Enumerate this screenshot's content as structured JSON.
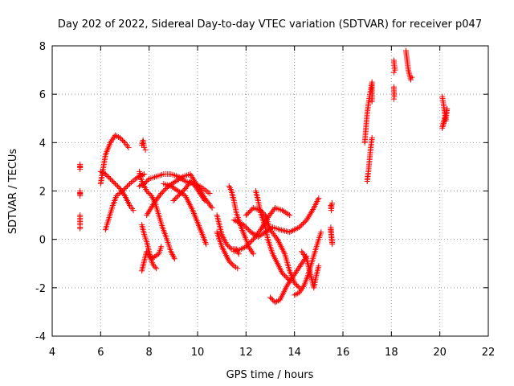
{
  "chart_data": {
    "type": "scatter",
    "title": "Day 202 of 2022, Sidereal Day-to-day VTEC variation (SDTVAR) for receiver p047",
    "xlabel": "GPS time / hours",
    "ylabel": "SDTVAR / TECUs",
    "xlim": [
      4,
      22
    ],
    "ylim": [
      -4,
      8
    ],
    "xticks": [
      "4",
      "6",
      "8",
      "10",
      "12",
      "14",
      "16",
      "18",
      "20",
      "22"
    ],
    "yticks": [
      "-4",
      "-2",
      "0",
      "2",
      "4",
      "6",
      "8"
    ],
    "grid": true,
    "marker": "+",
    "color": "#ff0000",
    "tracks": [
      [
        [
          5.15,
          3.0
        ],
        [
          5.15,
          3.1
        ],
        [
          5.15,
          2.9
        ]
      ],
      [
        [
          5.15,
          2.0
        ],
        [
          5.15,
          1.8
        ],
        [
          5.15,
          1.9
        ]
      ],
      [
        [
          5.15,
          1.0
        ],
        [
          5.15,
          0.8
        ],
        [
          5.15,
          0.6
        ],
        [
          5.15,
          0.5
        ],
        [
          5.15,
          0.45
        ]
      ],
      [
        [
          6.0,
          2.3
        ],
        [
          6.1,
          2.9
        ],
        [
          6.2,
          3.5
        ],
        [
          6.4,
          4.0
        ],
        [
          6.6,
          4.3
        ],
        [
          6.8,
          4.2
        ],
        [
          7.0,
          4.0
        ],
        [
          7.15,
          3.8
        ]
      ],
      [
        [
          6.0,
          2.8
        ],
        [
          6.2,
          2.7
        ],
        [
          6.5,
          2.4
        ],
        [
          6.8,
          2.1
        ],
        [
          7.0,
          1.8
        ],
        [
          7.2,
          1.4
        ],
        [
          7.35,
          1.2
        ]
      ],
      [
        [
          6.2,
          0.4
        ],
        [
          6.35,
          0.9
        ],
        [
          6.5,
          1.4
        ],
        [
          6.65,
          1.8
        ],
        [
          6.9,
          2.0
        ],
        [
          7.2,
          2.3
        ],
        [
          7.5,
          2.55
        ],
        [
          7.8,
          2.7
        ]
      ],
      [
        [
          7.7,
          3.9
        ],
        [
          7.75,
          4.1
        ],
        [
          7.8,
          3.8
        ],
        [
          7.85,
          3.7
        ]
      ],
      [
        [
          7.7,
          0.6
        ],
        [
          7.8,
          0.2
        ],
        [
          7.9,
          -0.1
        ],
        [
          8.0,
          -0.5
        ],
        [
          8.1,
          -0.9
        ],
        [
          8.2,
          -1.1
        ],
        [
          8.3,
          -1.2
        ]
      ],
      [
        [
          7.7,
          -1.3
        ],
        [
          7.8,
          -0.9
        ],
        [
          7.9,
          -0.5
        ],
        [
          8.1,
          -0.8
        ],
        [
          8.4,
          -0.6
        ],
        [
          8.5,
          -0.3
        ]
      ],
      [
        [
          7.6,
          2.8
        ],
        [
          7.7,
          2.4
        ],
        [
          7.9,
          2.0
        ],
        [
          8.1,
          1.8
        ],
        [
          8.25,
          1.5
        ],
        [
          8.4,
          1.0
        ],
        [
          8.55,
          0.5
        ],
        [
          8.7,
          0.1
        ],
        [
          8.8,
          -0.2
        ],
        [
          8.9,
          -0.5
        ],
        [
          9.05,
          -0.8
        ]
      ],
      [
        [
          7.6,
          2.2
        ],
        [
          7.8,
          2.3
        ],
        [
          8.0,
          2.5
        ],
        [
          8.3,
          2.6
        ],
        [
          8.6,
          2.7
        ],
        [
          8.9,
          2.7
        ],
        [
          9.2,
          2.6
        ],
        [
          9.5,
          2.4
        ],
        [
          9.8,
          2.3
        ],
        [
          10.1,
          2.2
        ],
        [
          10.3,
          2.05
        ],
        [
          10.5,
          1.9
        ]
      ],
      [
        [
          7.9,
          1.0
        ],
        [
          8.2,
          1.5
        ],
        [
          8.5,
          1.9
        ],
        [
          8.8,
          2.2
        ],
        [
          9.1,
          2.4
        ],
        [
          9.4,
          2.6
        ],
        [
          9.7,
          2.7
        ],
        [
          10.0,
          2.2
        ],
        [
          10.3,
          1.7
        ],
        [
          10.6,
          1.3
        ]
      ],
      [
        [
          8.6,
          2.3
        ],
        [
          8.9,
          2.2
        ],
        [
          9.2,
          2.0
        ],
        [
          9.5,
          1.8
        ],
        [
          9.8,
          1.2
        ],
        [
          10.0,
          0.7
        ],
        [
          10.2,
          0.2
        ],
        [
          10.35,
          -0.2
        ]
      ],
      [
        [
          9.0,
          1.6
        ],
        [
          9.3,
          1.9
        ],
        [
          9.5,
          2.1
        ],
        [
          9.7,
          2.4
        ],
        [
          9.9,
          2.2
        ],
        [
          10.1,
          1.9
        ],
        [
          10.3,
          1.6
        ]
      ],
      [
        [
          10.8,
          1.0
        ],
        [
          10.9,
          0.6
        ],
        [
          11.0,
          0.2
        ],
        [
          11.2,
          -0.2
        ],
        [
          11.4,
          -0.4
        ],
        [
          11.6,
          -0.4
        ],
        [
          11.7,
          -0.6
        ]
      ],
      [
        [
          10.8,
          0.3
        ],
        [
          11.0,
          -0.3
        ],
        [
          11.15,
          -0.6
        ],
        [
          11.3,
          -0.9
        ],
        [
          11.5,
          -1.1
        ],
        [
          11.65,
          -1.2
        ]
      ],
      [
        [
          11.3,
          2.2
        ],
        [
          11.4,
          2.0
        ],
        [
          11.5,
          1.6
        ],
        [
          11.6,
          1.1
        ],
        [
          11.8,
          0.5
        ],
        [
          12.0,
          0.0
        ],
        [
          12.1,
          -0.3
        ],
        [
          12.3,
          -0.6
        ]
      ],
      [
        [
          11.5,
          -0.5
        ],
        [
          11.8,
          -0.4
        ],
        [
          12.0,
          -0.3
        ],
        [
          12.3,
          0.0
        ],
        [
          12.6,
          0.4
        ],
        [
          12.9,
          0.9
        ],
        [
          13.2,
          1.3
        ],
        [
          13.5,
          1.2
        ],
        [
          13.8,
          1.0
        ]
      ],
      [
        [
          11.5,
          0.8
        ],
        [
          11.9,
          0.6
        ],
        [
          12.2,
          0.3
        ],
        [
          12.5,
          0.1
        ],
        [
          12.8,
          0.3
        ],
        [
          13.1,
          0.5
        ],
        [
          13.4,
          0.4
        ],
        [
          13.8,
          0.3
        ],
        [
          14.2,
          0.5
        ],
        [
          14.5,
          0.8
        ],
        [
          14.8,
          1.3
        ],
        [
          15.0,
          1.7
        ]
      ],
      [
        [
          12.0,
          1.0
        ],
        [
          12.3,
          1.3
        ],
        [
          12.6,
          1.2
        ],
        [
          12.8,
          1.0
        ],
        [
          13.0,
          0.4
        ],
        [
          13.3,
          0.0
        ],
        [
          13.6,
          -0.6
        ],
        [
          13.8,
          -1.3
        ],
        [
          14.0,
          -1.8
        ],
        [
          14.2,
          -2.0
        ]
      ],
      [
        [
          12.4,
          2.0
        ],
        [
          12.5,
          1.6
        ],
        [
          12.6,
          1.1
        ],
        [
          12.8,
          0.5
        ],
        [
          12.9,
          0.0
        ],
        [
          13.1,
          -0.6
        ],
        [
          13.3,
          -1.0
        ],
        [
          13.5,
          -1.4
        ],
        [
          13.8,
          -1.7
        ]
      ],
      [
        [
          13.0,
          -2.4
        ],
        [
          13.2,
          -2.6
        ],
        [
          13.4,
          -2.5
        ],
        [
          13.5,
          -2.3
        ],
        [
          13.7,
          -1.9
        ],
        [
          13.9,
          -1.6
        ],
        [
          14.1,
          -1.3
        ],
        [
          14.3,
          -1.0
        ],
        [
          14.5,
          -0.7
        ]
      ],
      [
        [
          14.0,
          -2.3
        ],
        [
          14.2,
          -2.2
        ],
        [
          14.4,
          -1.9
        ],
        [
          14.55,
          -1.5
        ],
        [
          14.7,
          -1.0
        ],
        [
          14.85,
          -0.5
        ],
        [
          15.0,
          0.0
        ],
        [
          15.1,
          0.3
        ]
      ],
      [
        [
          14.3,
          -0.5
        ],
        [
          14.5,
          -0.8
        ],
        [
          14.6,
          -1.2
        ],
        [
          14.7,
          -1.6
        ],
        [
          14.8,
          -2.0
        ],
        [
          14.9,
          -1.5
        ],
        [
          15.0,
          -1.1
        ]
      ],
      [
        [
          15.5,
          1.4
        ],
        [
          15.52,
          1.2
        ],
        [
          15.55,
          1.5
        ]
      ],
      [
        [
          15.5,
          0.5
        ],
        [
          15.52,
          0.2
        ],
        [
          15.54,
          0.0
        ],
        [
          15.56,
          -0.2
        ],
        [
          15.5,
          0.4
        ]
      ],
      [
        [
          17.0,
          2.4
        ],
        [
          17.05,
          2.8
        ],
        [
          17.1,
          3.3
        ],
        [
          17.15,
          3.8
        ],
        [
          17.2,
          4.2
        ]
      ],
      [
        [
          16.9,
          4.0
        ],
        [
          16.95,
          4.6
        ],
        [
          17.0,
          5.2
        ],
        [
          17.05,
          5.6
        ],
        [
          17.1,
          5.9
        ],
        [
          17.15,
          6.2
        ],
        [
          17.2,
          6.5
        ],
        [
          17.2,
          5.7
        ]
      ],
      [
        [
          18.1,
          7.4
        ],
        [
          18.12,
          7.2
        ],
        [
          18.15,
          7.0
        ],
        [
          18.1,
          6.9
        ]
      ],
      [
        [
          18.1,
          6.3
        ],
        [
          18.12,
          5.9
        ],
        [
          18.1,
          5.8
        ]
      ],
      [
        [
          18.6,
          7.8
        ],
        [
          18.65,
          7.4
        ],
        [
          18.7,
          7.0
        ],
        [
          18.75,
          6.8
        ],
        [
          18.8,
          6.6
        ],
        [
          18.85,
          6.7
        ]
      ],
      [
        [
          20.1,
          5.9
        ],
        [
          20.15,
          5.6
        ],
        [
          20.2,
          5.2
        ],
        [
          20.25,
          4.9
        ],
        [
          20.3,
          5.4
        ],
        [
          20.1,
          4.6
        ],
        [
          20.2,
          5.0
        ]
      ]
    ]
  }
}
